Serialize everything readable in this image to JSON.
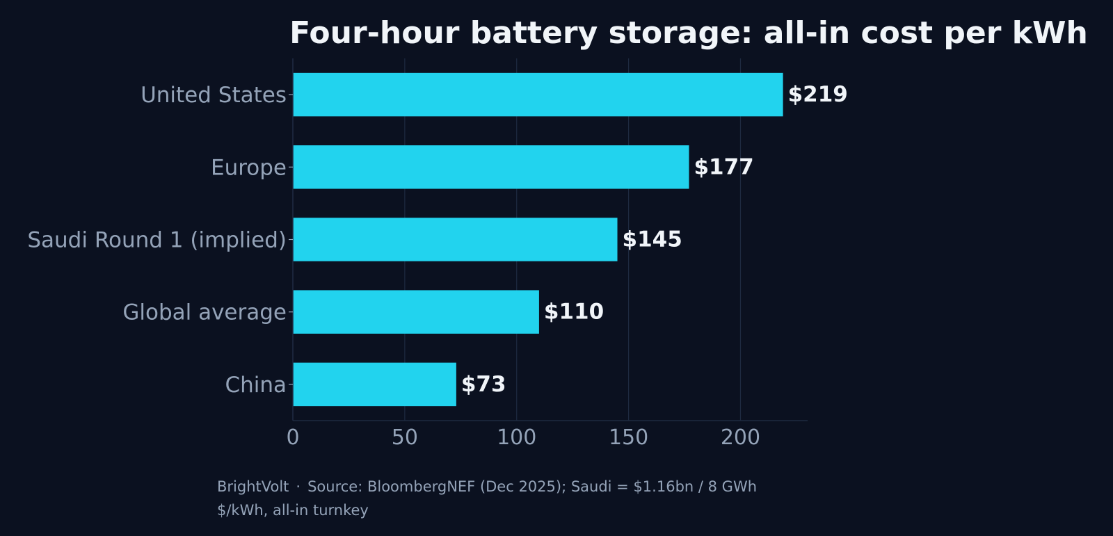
{
  "chart_data": {
    "type": "bar",
    "orientation": "horizontal",
    "title": "Four-hour battery storage: all-in cost per kWh",
    "categories": [
      "United States",
      "Europe",
      "Saudi Round 1 (implied)",
      "Global average",
      "China"
    ],
    "values": [
      219,
      177,
      145,
      110,
      73
    ],
    "data_labels": [
      "$219",
      "$177",
      "$145",
      "$110",
      "$73"
    ],
    "xlim": [
      0,
      230
    ],
    "x_ticks": [
      0,
      50,
      100,
      150,
      200
    ],
    "xlabel": "",
    "ylabel": "",
    "grid": "vertical",
    "legend": "none"
  },
  "colors": {
    "background": "#0b1120",
    "bar": "#22d3ee",
    "title": "#f1f5f9",
    "label": "#94a3b8",
    "value_label": "#f1f5f9",
    "grid": "#1e2a40"
  },
  "footer": {
    "brand": "BrightVolt",
    "separator": "·",
    "source": "Source: BloombergNEF (Dec 2025); Saudi = $1.16bn / 8 GWh",
    "units": "$/kWh, all-in turnkey"
  }
}
